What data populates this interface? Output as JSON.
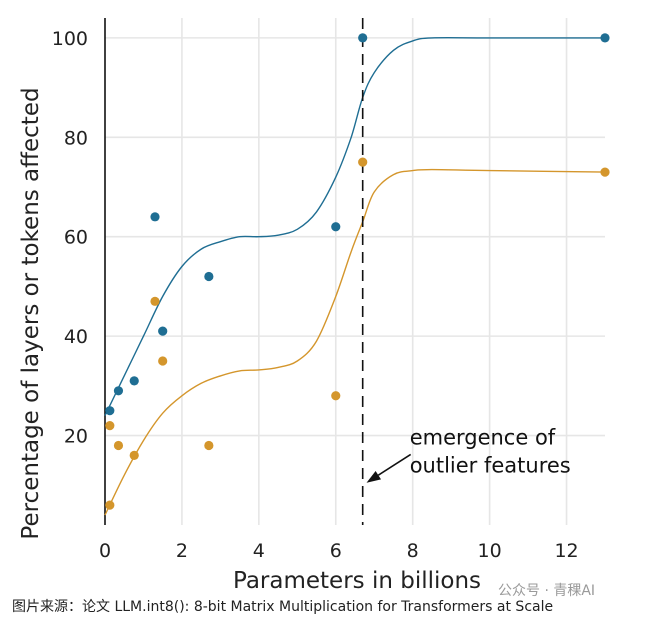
{
  "chart_data": {
    "type": "scatter",
    "title": "",
    "xlabel": "Parameters in billions",
    "ylabel": "Percentage of layers or tokens affected",
    "xlim": [
      0,
      13
    ],
    "ylim": [
      2,
      104
    ],
    "xticks": [
      0,
      2,
      4,
      6,
      8,
      10,
      12
    ],
    "yticks": [
      20,
      40,
      60,
      80,
      100
    ],
    "grid": true,
    "legend": "none",
    "series": [
      {
        "color": "#1f6e93",
        "points": [
          {
            "x": 0.125,
            "y": 25
          },
          {
            "x": 0.35,
            "y": 29
          },
          {
            "x": 0.76,
            "y": 31
          },
          {
            "x": 1.3,
            "y": 64
          },
          {
            "x": 1.5,
            "y": 41
          },
          {
            "x": 2.7,
            "y": 52
          },
          {
            "x": 6.0,
            "y": 62
          },
          {
            "x": 6.7,
            "y": 100
          },
          {
            "x": 13.0,
            "y": 100
          }
        ],
        "curve": [
          [
            0.0,
            24
          ],
          [
            0.5,
            32
          ],
          [
            1.0,
            40
          ],
          [
            1.5,
            48
          ],
          [
            2.0,
            54
          ],
          [
            2.5,
            57.5
          ],
          [
            3.0,
            59
          ],
          [
            3.5,
            60
          ],
          [
            4.0,
            60
          ],
          [
            4.5,
            60.3
          ],
          [
            5.0,
            61.5
          ],
          [
            5.5,
            65
          ],
          [
            6.0,
            72
          ],
          [
            6.4,
            80
          ],
          [
            6.7,
            88
          ],
          [
            7.0,
            93
          ],
          [
            7.5,
            97.5
          ],
          [
            8.0,
            99.4
          ],
          [
            8.5,
            100
          ],
          [
            10.0,
            100
          ],
          [
            13.0,
            100
          ]
        ]
      },
      {
        "color": "#d4962c",
        "points": [
          {
            "x": 0.125,
            "y": 22
          },
          {
            "x": 0.125,
            "y": 6
          },
          {
            "x": 0.35,
            "y": 18
          },
          {
            "x": 0.76,
            "y": 16
          },
          {
            "x": 1.3,
            "y": 47
          },
          {
            "x": 1.5,
            "y": 35
          },
          {
            "x": 2.7,
            "y": 18
          },
          {
            "x": 6.0,
            "y": 28
          },
          {
            "x": 6.7,
            "y": 75
          },
          {
            "x": 13.0,
            "y": 73
          }
        ],
        "curve": [
          [
            0.0,
            4
          ],
          [
            0.5,
            12
          ],
          [
            1.0,
            19
          ],
          [
            1.5,
            24.5
          ],
          [
            2.0,
            28
          ],
          [
            2.5,
            30.5
          ],
          [
            3.0,
            32
          ],
          [
            3.5,
            33
          ],
          [
            4.0,
            33.2
          ],
          [
            4.5,
            33.7
          ],
          [
            5.0,
            35
          ],
          [
            5.5,
            39
          ],
          [
            6.0,
            48
          ],
          [
            6.4,
            57
          ],
          [
            6.7,
            63
          ],
          [
            7.0,
            69
          ],
          [
            7.5,
            72.5
          ],
          [
            8.0,
            73.3
          ],
          [
            8.5,
            73.5
          ],
          [
            10.0,
            73.3
          ],
          [
            13.0,
            73
          ]
        ]
      }
    ],
    "vline": {
      "x": 6.7
    },
    "annotation": {
      "lines": [
        "emergence of",
        "outlier features"
      ],
      "arrow_from": [
        8.0,
        16.2
      ],
      "arrow_to": [
        6.8,
        10.5
      ],
      "text_pos": [
        8.0,
        18
      ]
    }
  },
  "caption": "图片来源：论文 LLM.int8(): 8-bit Matrix Multiplication for Transformers at Scale",
  "watermark": "公众号 · 青稞AI"
}
